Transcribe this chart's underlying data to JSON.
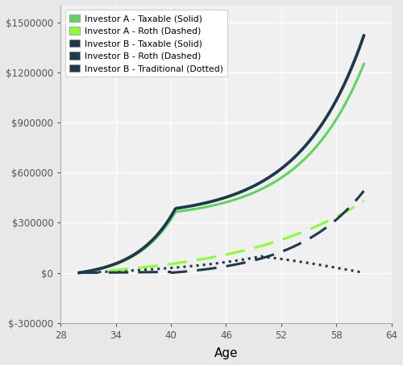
{
  "xlabel": "Age",
  "bg_color": "#e8e8e8",
  "plot_bg_color": "#f0f0f0",
  "grid_color": "#ffffff",
  "xlim": [
    28,
    64
  ],
  "ylim": [
    -300000,
    1600000
  ],
  "xticks": [
    28,
    34,
    40,
    46,
    52,
    58,
    64
  ],
  "yticks": [
    -300000,
    0,
    300000,
    600000,
    900000,
    1200000,
    1500000
  ],
  "investor_A_taxable_color": "#5cd65c",
  "investor_A_roth_color": "#88ff33",
  "investor_B_color": "#1c3a4a",
  "line_width": 2.2,
  "legend_labels": [
    "Investor A - Taxable (Solid)",
    "Investor A - Roth (Dashed)",
    "Investor B - Taxable (Solid)",
    "Investor B - Roth (Dashed)",
    "Investor B - Traditional (Dotted)"
  ],
  "legend_patch_colors": [
    "#5cd65c",
    "#88ff33",
    "#1c3a4a",
    "#1c3a4a",
    "#1c3a4a"
  ]
}
